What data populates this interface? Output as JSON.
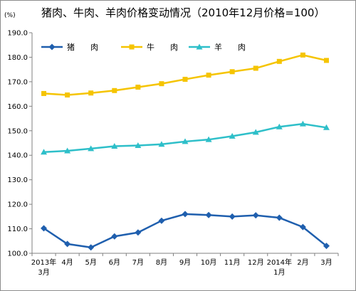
{
  "chart_data": {
    "type": "line",
    "title": "猪肉、牛肉、羊肉价格变动情况（2010年12月价格=100）",
    "unit_label": "(%)",
    "categories": [
      [
        "2013年",
        "3月"
      ],
      [
        "4月"
      ],
      [
        "5月"
      ],
      [
        "6月"
      ],
      [
        "7月"
      ],
      [
        "8月"
      ],
      [
        "9月"
      ],
      [
        "10月"
      ],
      [
        "11月"
      ],
      [
        "12月"
      ],
      [
        "2014年",
        "1月"
      ],
      [
        "2月"
      ],
      [
        "3月"
      ]
    ],
    "y_ticks": [
      "100.0",
      "110.0",
      "120.0",
      "130.0",
      "140.0",
      "150.0",
      "160.0",
      "170.0",
      "180.0",
      "190.0"
    ],
    "ylim": [
      100,
      190
    ],
    "grid": false,
    "legend_position": "top-left",
    "series": [
      {
        "name": "猪　　肉",
        "color": "#1f5fae",
        "marker": "diamond",
        "values": [
          110.2,
          103.8,
          102.4,
          106.9,
          108.5,
          113.3,
          116.0,
          115.6,
          115.0,
          115.5,
          114.5,
          110.7,
          103.0
        ]
      },
      {
        "name": "牛　　肉",
        "color": "#f5c400",
        "marker": "square",
        "values": [
          165.2,
          164.6,
          165.4,
          166.4,
          167.8,
          169.2,
          171.0,
          172.7,
          174.1,
          175.5,
          178.3,
          180.9,
          178.7
        ]
      },
      {
        "name": "羊　　肉",
        "color": "#2ebfc9",
        "marker": "triangle",
        "values": [
          141.3,
          141.8,
          142.7,
          143.7,
          144.0,
          144.5,
          145.6,
          146.4,
          147.8,
          149.4,
          151.6,
          152.8,
          151.3
        ]
      }
    ]
  }
}
